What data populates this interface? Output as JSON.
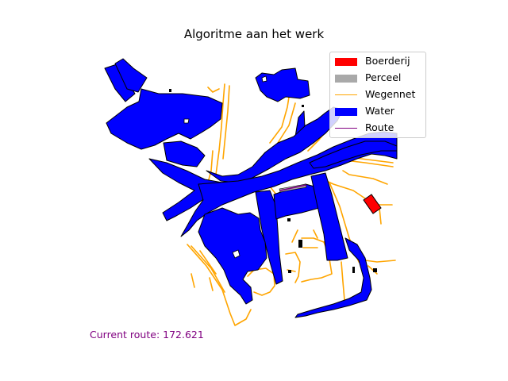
{
  "title": "Algoritme aan het werk",
  "route_readout": "Current route: 172.621",
  "legend": {
    "items": [
      {
        "label": "Boerderij",
        "kind": "patch",
        "color": "#ff0000"
      },
      {
        "label": "Perceel",
        "kind": "patch",
        "color": "#a9a9a9"
      },
      {
        "label": "Wegennet",
        "kind": "line",
        "color": "#ffa500"
      },
      {
        "label": "Water",
        "kind": "patch",
        "color": "#0000ff"
      },
      {
        "label": "Route",
        "kind": "line",
        "color": "#800080"
      }
    ]
  },
  "colors": {
    "farm": "#ff0000",
    "parcel": "#a9a9a9",
    "roads": "#ffa500",
    "water": "#0000ff",
    "route": "#800080",
    "outline": "#000000"
  }
}
